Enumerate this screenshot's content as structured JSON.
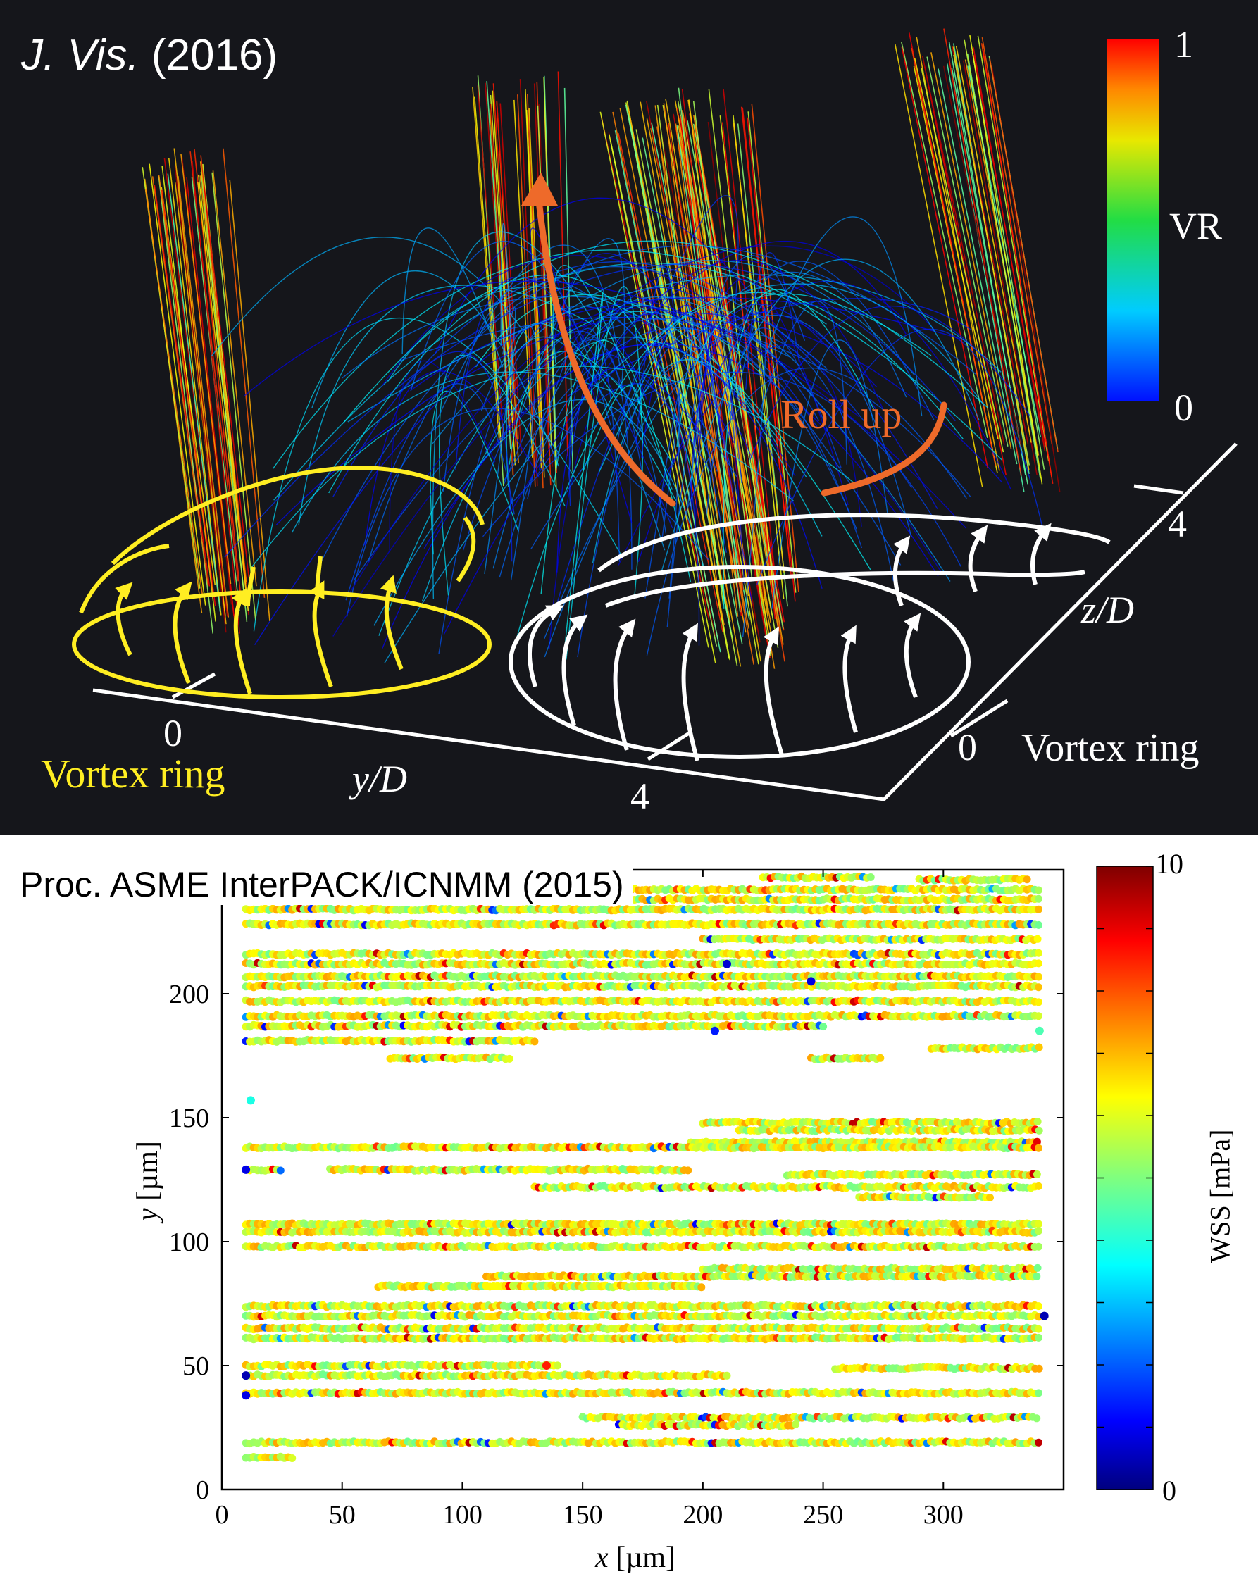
{
  "top_panel": {
    "citation_italic": "J. Vis.",
    "citation_year": "(2016)",
    "colorbar": {
      "label": "VR",
      "max": "1",
      "min": "0"
    },
    "annotation": "Roll up",
    "labels": {
      "vortex_ring_left": "Vortex ring",
      "vortex_ring_right": "Vortex ring",
      "y_axis": "y/D",
      "z_axis": "z/D",
      "y_tick_0": "0",
      "y_tick_4": "4",
      "z_tick_0": "0",
      "z_tick_4": "4"
    },
    "colors": {
      "background": "#15161b",
      "annotation": "#ee6a2a",
      "left_ring": "#ffee22",
      "right_ring": "#ffffff"
    }
  },
  "bottom_panel": {
    "citation": "Proc. ASME InterPACK/ICNMM (2015)"
  },
  "chart_data": {
    "type": "scatter",
    "xlabel_italic": "x",
    "xlabel_unit": "[µm]",
    "ylabel_italic": "y",
    "ylabel_unit": "[µm]",
    "xlim": [
      0,
      350
    ],
    "ylim": [
      0,
      250
    ],
    "xticks": [
      0,
      50,
      100,
      150,
      200,
      250,
      300
    ],
    "yticks": [
      0,
      50,
      100,
      150,
      200
    ],
    "colorbar": {
      "label": "WSS [mPa]",
      "min": 0,
      "max": 10,
      "min_label": "0",
      "max_label": "10"
    },
    "color_encoding": "WSS",
    "typical_wss": 6,
    "tracks": [
      {
        "y": 247,
        "x": [
          225,
          270
        ]
      },
      {
        "y": 246,
        "x": [
          290,
          335
        ]
      },
      {
        "y": 242,
        "x": [
          10,
          340
        ]
      },
      {
        "y": 238,
        "x": [
          10,
          340
        ]
      },
      {
        "y": 234,
        "x": [
          10,
          340
        ]
      },
      {
        "y": 228,
        "x": [
          10,
          340
        ]
      },
      {
        "y": 222,
        "x": [
          200,
          340
        ]
      },
      {
        "y": 216,
        "x": [
          10,
          340
        ]
      },
      {
        "y": 212,
        "x": [
          10,
          340
        ]
      },
      {
        "y": 207,
        "x": [
          10,
          340
        ]
      },
      {
        "y": 203,
        "x": [
          10,
          340
        ]
      },
      {
        "y": 197,
        "x": [
          10,
          340
        ]
      },
      {
        "y": 191,
        "x": [
          10,
          340
        ]
      },
      {
        "y": 187,
        "x": [
          10,
          250
        ]
      },
      {
        "y": 181,
        "x": [
          10,
          130
        ]
      },
      {
        "y": 178,
        "x": [
          295,
          340
        ]
      },
      {
        "y": 174,
        "x": [
          70,
          120
        ]
      },
      {
        "y": 174,
        "x": [
          245,
          275
        ]
      },
      {
        "y": 148,
        "x": [
          200,
          340
        ]
      },
      {
        "y": 145,
        "x": [
          215,
          340
        ]
      },
      {
        "y": 140,
        "x": [
          195,
          340
        ]
      },
      {
        "y": 138,
        "x": [
          10,
          340
        ]
      },
      {
        "y": 129,
        "x": [
          10,
          25
        ]
      },
      {
        "y": 129,
        "x": [
          45,
          195
        ]
      },
      {
        "y": 127,
        "x": [
          235,
          340
        ]
      },
      {
        "y": 122,
        "x": [
          130,
          340
        ]
      },
      {
        "y": 118,
        "x": [
          265,
          320
        ]
      },
      {
        "y": 107,
        "x": [
          10,
          340
        ]
      },
      {
        "y": 104,
        "x": [
          10,
          340
        ]
      },
      {
        "y": 98,
        "x": [
          10,
          340
        ]
      },
      {
        "y": 89,
        "x": [
          200,
          340
        ]
      },
      {
        "y": 86,
        "x": [
          110,
          340
        ]
      },
      {
        "y": 82,
        "x": [
          65,
          200
        ]
      },
      {
        "y": 74,
        "x": [
          10,
          340
        ]
      },
      {
        "y": 70,
        "x": [
          10,
          340
        ]
      },
      {
        "y": 65,
        "x": [
          10,
          340
        ]
      },
      {
        "y": 61,
        "x": [
          10,
          340
        ]
      },
      {
        "y": 50,
        "x": [
          10,
          140
        ]
      },
      {
        "y": 49,
        "x": [
          255,
          340
        ]
      },
      {
        "y": 46,
        "x": [
          10,
          210
        ]
      },
      {
        "y": 39,
        "x": [
          10,
          340
        ]
      },
      {
        "y": 29,
        "x": [
          150,
          340
        ]
      },
      {
        "y": 26,
        "x": [
          165,
          240
        ]
      },
      {
        "y": 19,
        "x": [
          10,
          340
        ]
      },
      {
        "y": 13,
        "x": [
          10,
          30
        ]
      }
    ],
    "scattered_points": [
      {
        "x": 12,
        "y": 157,
        "wss": 4
      },
      {
        "x": 10,
        "y": 129,
        "wss": 1
      },
      {
        "x": 10,
        "y": 46,
        "wss": 0.5
      },
      {
        "x": 10,
        "y": 38,
        "wss": 1
      },
      {
        "x": 205,
        "y": 185,
        "wss": 1.5
      },
      {
        "x": 340,
        "y": 185,
        "wss": 4.5
      },
      {
        "x": 342,
        "y": 70,
        "wss": 0.5
      },
      {
        "x": 135,
        "y": 50,
        "wss": 8.5
      },
      {
        "x": 210,
        "y": 212,
        "wss": 0.8
      },
      {
        "x": 245,
        "y": 205,
        "wss": 1
      }
    ]
  }
}
